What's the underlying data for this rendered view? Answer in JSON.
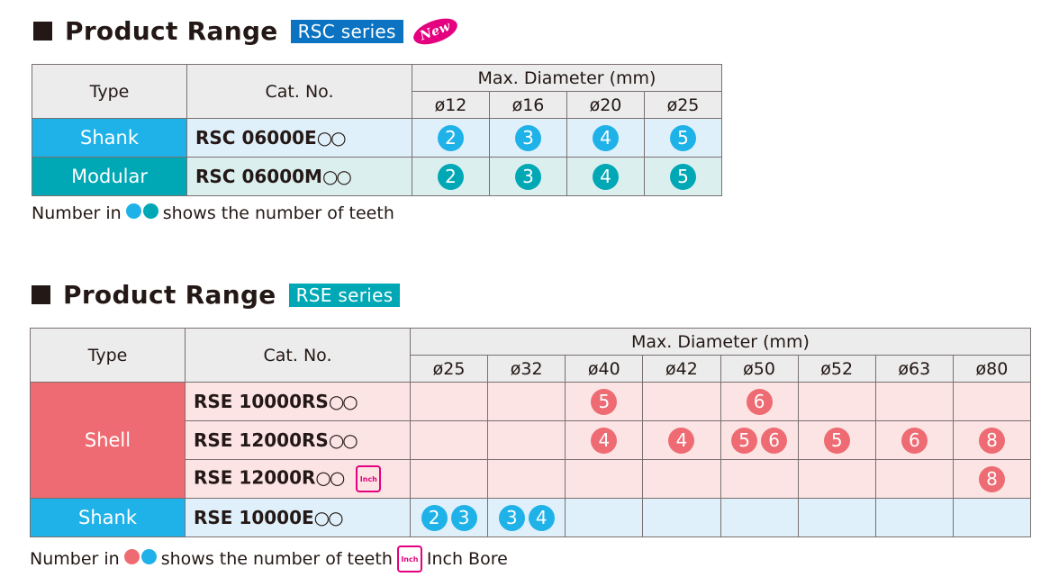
{
  "rsc": {
    "title": "Product Range",
    "tag": "RSC series",
    "new_badge": "New",
    "header": {
      "type": "Type",
      "cat": "Cat. No.",
      "max": "Max. Diameter (mm)",
      "diameters": [
        "ø12",
        "ø16",
        "ø20",
        "ø25"
      ]
    },
    "rows": [
      {
        "type": "Shank",
        "cat": "RSC 06000E",
        "circles": "○○",
        "cells": [
          [
            "2"
          ],
          [
            "3"
          ],
          [
            "4"
          ],
          [
            "5"
          ]
        ]
      },
      {
        "type": "Modular",
        "cat": "RSC 06000M",
        "circles": "○○",
        "cells": [
          [
            "2"
          ],
          [
            "3"
          ],
          [
            "4"
          ],
          [
            "5"
          ]
        ]
      }
    ],
    "note_pre": "Number in",
    "note_post": "shows the number of teeth"
  },
  "rse": {
    "title": "Product Range",
    "tag": "RSE series",
    "header": {
      "type": "Type",
      "cat": "Cat. No.",
      "max": "Max. Diameter (mm)",
      "diameters": [
        "ø25",
        "ø32",
        "ø40",
        "ø42",
        "ø50",
        "ø52",
        "ø63",
        "ø80"
      ]
    },
    "shell_label": "Shell",
    "shank_label": "Shank",
    "inch_label": "Inch",
    "rows": [
      {
        "cat": "RSE 10000RS",
        "circles": "○○",
        "cells": [
          [],
          [],
          [
            "5"
          ],
          [],
          [
            "6"
          ],
          [],
          [],
          []
        ]
      },
      {
        "cat": "RSE 12000RS",
        "circles": "○○",
        "cells": [
          [],
          [],
          [
            "4"
          ],
          [
            "4"
          ],
          [
            "5",
            "6"
          ],
          [
            "5"
          ],
          [
            "6"
          ],
          [
            "8"
          ]
        ]
      },
      {
        "cat": "RSE 12000R",
        "circles": "○○",
        "inch": true,
        "cells": [
          [],
          [],
          [],
          [],
          [],
          [],
          [],
          [
            "8"
          ]
        ]
      },
      {
        "cat": "RSE 10000E",
        "circles": "○○",
        "cells": [
          [
            "2",
            "3"
          ],
          [
            "3",
            "4"
          ],
          [],
          [],
          [],
          [],
          [],
          []
        ]
      }
    ],
    "note_pre": "Number in",
    "note_mid": "shows the number of teeth",
    "note_inch": "Inch Bore"
  },
  "colors": {
    "shank": "#1fb2e8",
    "modular": "#00a8b5",
    "shell": "#ee6b73",
    "shank_cell": "#dff0fa",
    "modular_cell": "#dcefef",
    "shell_cell": "#fbe4e3",
    "rsc_tag": "#0b73c2",
    "rse_tag": "#00a8b5"
  }
}
